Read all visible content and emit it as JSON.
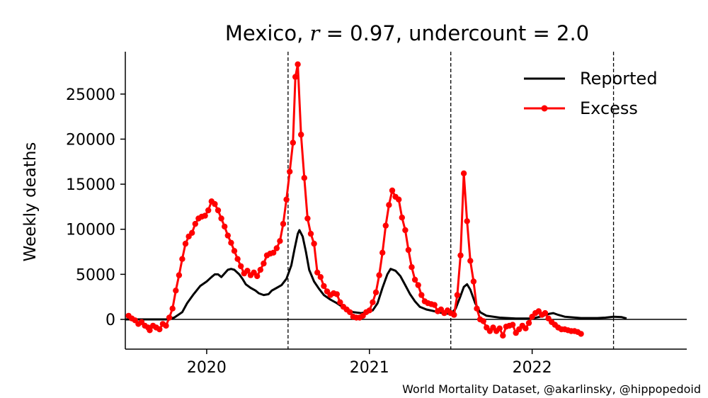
{
  "chart_data": {
    "type": "line",
    "title_parts": {
      "prefix": "Mexico, ",
      "r_symbol": "r",
      "r_text": " = 0.97, undercount = 2.0"
    },
    "ylabel": "Weekly deaths",
    "xlabel": "",
    "xlim": [
      2019.5,
      2022.95
    ],
    "ylim": [
      -3300,
      29700
    ],
    "x_ticks": [
      2020,
      2021,
      2022
    ],
    "x_tick_labels": [
      "2020",
      "2021",
      "2022"
    ],
    "y_ticks": [
      0,
      5000,
      10000,
      15000,
      20000,
      25000
    ],
    "y_tick_labels": [
      "0",
      "5000",
      "10000",
      "15000",
      "20000",
      "25000"
    ],
    "vlines": [
      2020.5,
      2021.5,
      2022.5
    ],
    "zero_line": true,
    "grid": false,
    "legend_position": "top-right",
    "colors": {
      "reported": "#000000",
      "excess": "#ff0000"
    },
    "series": [
      {
        "name": "Reported",
        "style": "line",
        "points": [
          [
            2019.5,
            0
          ],
          [
            2019.6,
            0
          ],
          [
            2019.7,
            0
          ],
          [
            2019.75,
            0
          ],
          [
            2019.8,
            200
          ],
          [
            2019.85,
            800
          ],
          [
            2019.88,
            1800
          ],
          [
            2019.92,
            2800
          ],
          [
            2019.96,
            3700
          ],
          [
            2020.0,
            4200
          ],
          [
            2020.03,
            4700
          ],
          [
            2020.05,
            5000
          ],
          [
            2020.07,
            5000
          ],
          [
            2020.09,
            4700
          ],
          [
            2020.11,
            5100
          ],
          [
            2020.13,
            5500
          ],
          [
            2020.15,
            5600
          ],
          [
            2020.17,
            5500
          ],
          [
            2020.2,
            5000
          ],
          [
            2020.22,
            4500
          ],
          [
            2020.24,
            3900
          ],
          [
            2020.27,
            3500
          ],
          [
            2020.3,
            3200
          ],
          [
            2020.32,
            2900
          ],
          [
            2020.35,
            2700
          ],
          [
            2020.38,
            2800
          ],
          [
            2020.4,
            3200
          ],
          [
            2020.43,
            3500
          ],
          [
            2020.46,
            3800
          ],
          [
            2020.49,
            4500
          ],
          [
            2020.52,
            6000
          ],
          [
            2020.54,
            7800
          ],
          [
            2020.56,
            9500
          ],
          [
            2020.57,
            9900
          ],
          [
            2020.59,
            9200
          ],
          [
            2020.61,
            7500
          ],
          [
            2020.63,
            5500
          ],
          [
            2020.66,
            4200
          ],
          [
            2020.69,
            3400
          ],
          [
            2020.72,
            2700
          ],
          [
            2020.76,
            2200
          ],
          [
            2020.8,
            1800
          ],
          [
            2020.85,
            1200
          ],
          [
            2020.9,
            800
          ],
          [
            2020.95,
            700
          ],
          [
            2020.98,
            800
          ],
          [
            2021.02,
            1000
          ],
          [
            2021.05,
            1800
          ],
          [
            2021.08,
            3500
          ],
          [
            2021.11,
            5000
          ],
          [
            2021.13,
            5600
          ],
          [
            2021.16,
            5400
          ],
          [
            2021.19,
            4800
          ],
          [
            2021.22,
            3800
          ],
          [
            2021.25,
            2800
          ],
          [
            2021.28,
            2000
          ],
          [
            2021.31,
            1400
          ],
          [
            2021.35,
            1100
          ],
          [
            2021.4,
            900
          ],
          [
            2021.45,
            700
          ],
          [
            2021.5,
            600
          ],
          [
            2021.53,
            1200
          ],
          [
            2021.56,
            2600
          ],
          [
            2021.58,
            3600
          ],
          [
            2021.6,
            3900
          ],
          [
            2021.62,
            3300
          ],
          [
            2021.65,
            1800
          ],
          [
            2021.68,
            800
          ],
          [
            2021.72,
            400
          ],
          [
            2021.8,
            200
          ],
          [
            2021.9,
            100
          ],
          [
            2022.0,
            100
          ],
          [
            2022.05,
            300
          ],
          [
            2022.1,
            600
          ],
          [
            2022.13,
            700
          ],
          [
            2022.16,
            500
          ],
          [
            2022.2,
            300
          ],
          [
            2022.3,
            150
          ],
          [
            2022.4,
            150
          ],
          [
            2022.45,
            200
          ],
          [
            2022.5,
            300
          ],
          [
            2022.55,
            250
          ],
          [
            2022.58,
            100
          ]
        ]
      },
      {
        "name": "Excess",
        "style": "line-marker",
        "points": [
          [
            2019.52,
            400
          ],
          [
            2019.54,
            100
          ],
          [
            2019.56,
            -100
          ],
          [
            2019.58,
            -500
          ],
          [
            2019.6,
            -300
          ],
          [
            2019.62,
            -700
          ],
          [
            2019.64,
            -900
          ],
          [
            2019.65,
            -1200
          ],
          [
            2019.67,
            -700
          ],
          [
            2019.69,
            -900
          ],
          [
            2019.71,
            -1100
          ],
          [
            2019.73,
            -500
          ],
          [
            2019.75,
            -700
          ],
          [
            2019.77,
            200
          ],
          [
            2019.79,
            1200
          ],
          [
            2019.81,
            3200
          ],
          [
            2019.83,
            4900
          ],
          [
            2019.85,
            6700
          ],
          [
            2019.87,
            8400
          ],
          [
            2019.89,
            9200
          ],
          [
            2019.91,
            9600
          ],
          [
            2019.93,
            10600
          ],
          [
            2019.95,
            11200
          ],
          [
            2019.97,
            11400
          ],
          [
            2019.99,
            11500
          ],
          [
            2020.01,
            12100
          ],
          [
            2020.03,
            13100
          ],
          [
            2020.05,
            12800
          ],
          [
            2020.07,
            12100
          ],
          [
            2020.09,
            11200
          ],
          [
            2020.11,
            10300
          ],
          [
            2020.13,
            9300
          ],
          [
            2020.15,
            8500
          ],
          [
            2020.17,
            7600
          ],
          [
            2020.19,
            6700
          ],
          [
            2020.21,
            5900
          ],
          [
            2020.23,
            5100
          ],
          [
            2020.25,
            5400
          ],
          [
            2020.27,
            4900
          ],
          [
            2020.29,
            5200
          ],
          [
            2020.31,
            4800
          ],
          [
            2020.33,
            5500
          ],
          [
            2020.35,
            6200
          ],
          [
            2020.37,
            7100
          ],
          [
            2020.39,
            7300
          ],
          [
            2020.41,
            7400
          ],
          [
            2020.43,
            7900
          ],
          [
            2020.45,
            8700
          ],
          [
            2020.47,
            10600
          ],
          [
            2020.49,
            13300
          ],
          [
            2020.51,
            16400
          ],
          [
            2020.53,
            19600
          ],
          [
            2020.545,
            26900
          ],
          [
            2020.56,
            28300
          ],
          [
            2020.58,
            20500
          ],
          [
            2020.6,
            15700
          ],
          [
            2020.62,
            11200
          ],
          [
            2020.64,
            9500
          ],
          [
            2020.66,
            8400
          ],
          [
            2020.68,
            5200
          ],
          [
            2020.7,
            4700
          ],
          [
            2020.72,
            3700
          ],
          [
            2020.74,
            3100
          ],
          [
            2020.76,
            2700
          ],
          [
            2020.78,
            2900
          ],
          [
            2020.8,
            2800
          ],
          [
            2020.82,
            1900
          ],
          [
            2020.84,
            1400
          ],
          [
            2020.86,
            1100
          ],
          [
            2020.88,
            800
          ],
          [
            2020.9,
            300
          ],
          [
            2020.92,
            200
          ],
          [
            2020.94,
            200
          ],
          [
            2020.96,
            400
          ],
          [
            2020.98,
            800
          ],
          [
            2021.0,
            1000
          ],
          [
            2021.02,
            1900
          ],
          [
            2021.04,
            3000
          ],
          [
            2021.06,
            4900
          ],
          [
            2021.08,
            7400
          ],
          [
            2021.1,
            10400
          ],
          [
            2021.12,
            12700
          ],
          [
            2021.14,
            14300
          ],
          [
            2021.16,
            13600
          ],
          [
            2021.18,
            13300
          ],
          [
            2021.2,
            11300
          ],
          [
            2021.22,
            9900
          ],
          [
            2021.24,
            7700
          ],
          [
            2021.26,
            5800
          ],
          [
            2021.28,
            4400
          ],
          [
            2021.3,
            3800
          ],
          [
            2021.32,
            2700
          ],
          [
            2021.34,
            2000
          ],
          [
            2021.36,
            1800
          ],
          [
            2021.38,
            1700
          ],
          [
            2021.4,
            1600
          ],
          [
            2021.42,
            900
          ],
          [
            2021.44,
            1100
          ],
          [
            2021.46,
            700
          ],
          [
            2021.48,
            1000
          ],
          [
            2021.5,
            700
          ],
          [
            2021.52,
            500
          ],
          [
            2021.54,
            2700
          ],
          [
            2021.56,
            7100
          ],
          [
            2021.58,
            16200
          ],
          [
            2021.6,
            10900
          ],
          [
            2021.62,
            6500
          ],
          [
            2021.64,
            4200
          ],
          [
            2021.66,
            1200
          ],
          [
            2021.68,
            0
          ],
          [
            2021.7,
            -200
          ],
          [
            2021.72,
            -900
          ],
          [
            2021.74,
            -1300
          ],
          [
            2021.76,
            -900
          ],
          [
            2021.78,
            -1300
          ],
          [
            2021.8,
            -1000
          ],
          [
            2021.82,
            -1800
          ],
          [
            2021.84,
            -800
          ],
          [
            2021.86,
            -700
          ],
          [
            2021.88,
            -600
          ],
          [
            2021.9,
            -1500
          ],
          [
            2021.92,
            -1100
          ],
          [
            2021.94,
            -700
          ],
          [
            2021.96,
            -1000
          ],
          [
            2021.98,
            -400
          ],
          [
            2022.0,
            300
          ],
          [
            2022.02,
            700
          ],
          [
            2022.04,
            900
          ],
          [
            2022.06,
            500
          ],
          [
            2022.08,
            700
          ],
          [
            2022.1,
            100
          ],
          [
            2022.12,
            -300
          ],
          [
            2022.14,
            -600
          ],
          [
            2022.16,
            -900
          ],
          [
            2022.18,
            -1100
          ],
          [
            2022.2,
            -1100
          ],
          [
            2022.22,
            -1200
          ],
          [
            2022.24,
            -1300
          ],
          [
            2022.26,
            -1300
          ],
          [
            2022.28,
            -1400
          ],
          [
            2022.3,
            -1600
          ]
        ]
      }
    ]
  },
  "footer": {
    "source": "World Mortality Dataset, @akarlinsky, @hippopedoid"
  }
}
